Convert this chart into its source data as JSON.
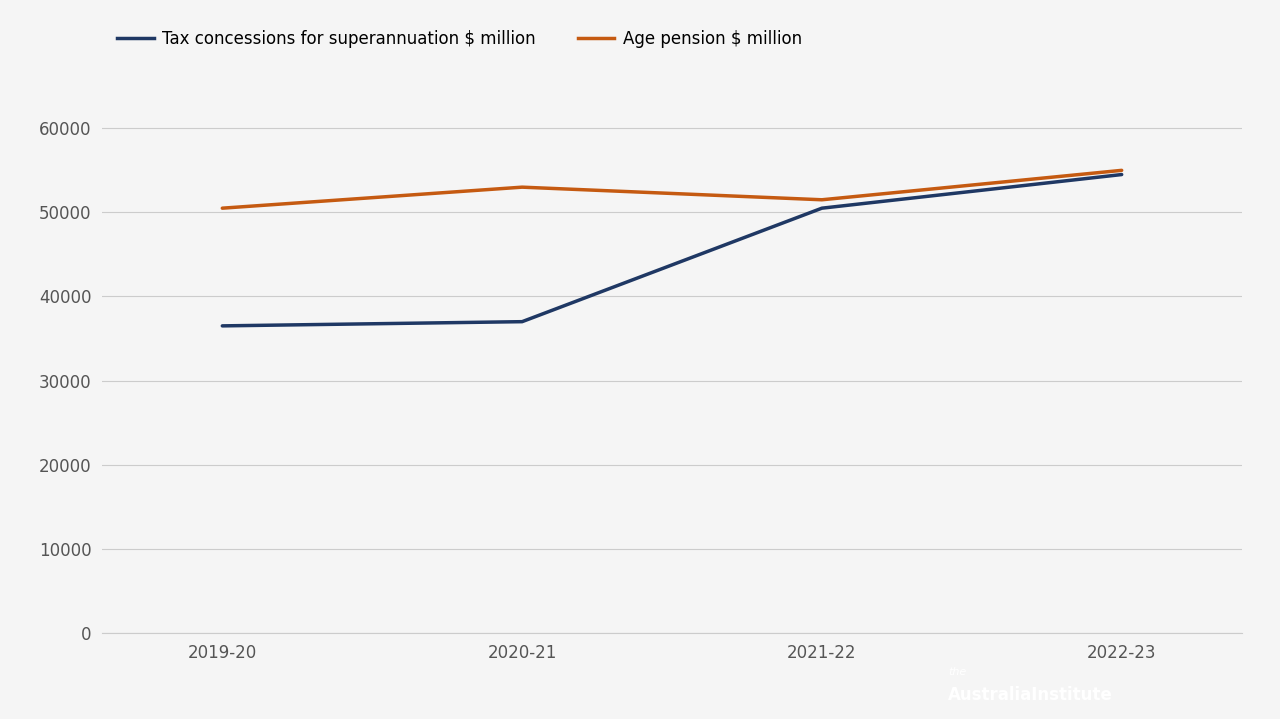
{
  "years": [
    "2019-20",
    "2020-21",
    "2021-22",
    "2022-23"
  ],
  "superannuation": [
    36500,
    37000,
    50500,
    54500
  ],
  "age_pension": [
    50500,
    53000,
    51500,
    55000
  ],
  "super_color": "#1f3864",
  "pension_color": "#c55a11",
  "super_label": "Tax concessions for superannuation $ million",
  "pension_label": "Age pension $ million",
  "ylim": [
    0,
    65000
  ],
  "yticks": [
    0,
    10000,
    20000,
    30000,
    40000,
    50000,
    60000
  ],
  "background_color": "#f5f5f5",
  "plot_bg": "#f5f5f5",
  "grid_color": "#cccccc",
  "line_width": 2.5,
  "logo_bg": "#1a2e5a",
  "tick_color": "#555555",
  "tick_fontsize": 12
}
